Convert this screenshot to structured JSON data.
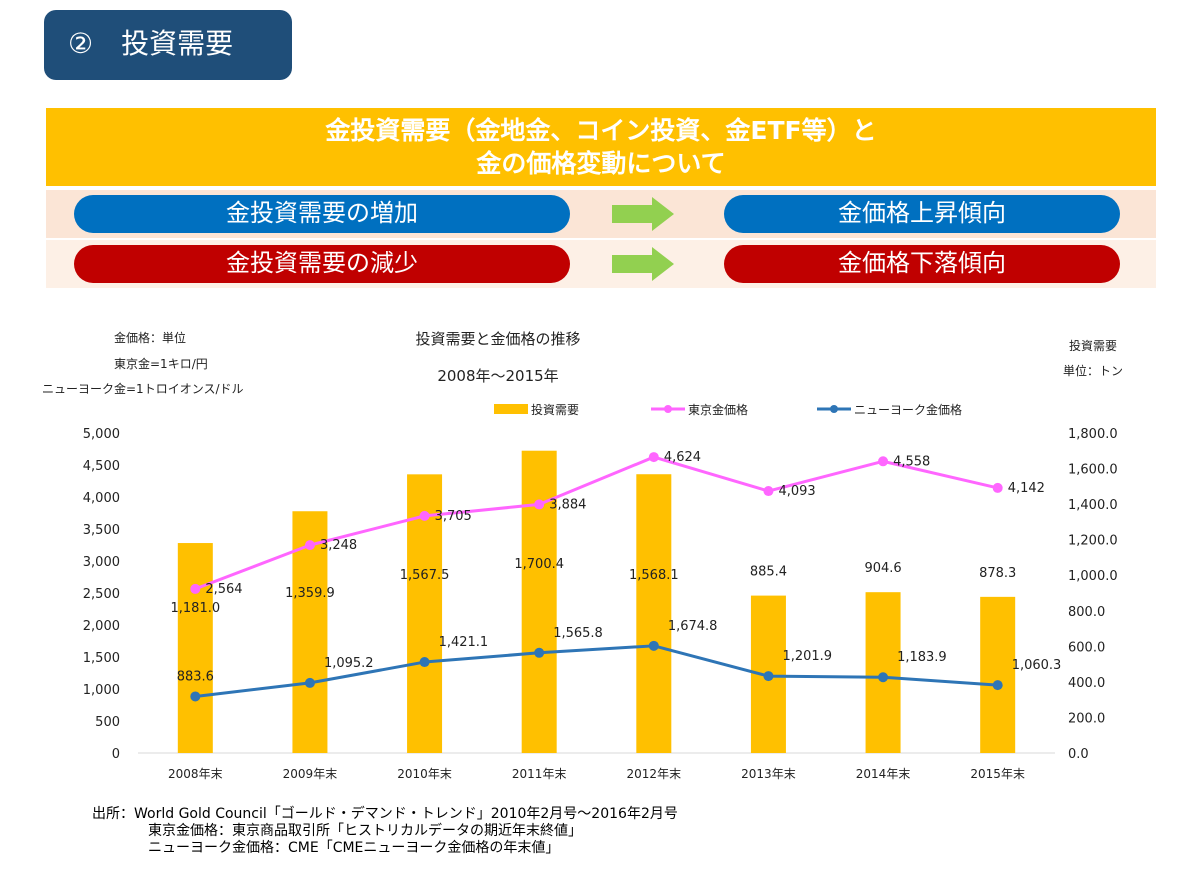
{
  "header": {
    "number": "②",
    "title": "投資需要"
  },
  "banner": {
    "line1": "金投資需要（金地金、コイン投資、金ETF等）と",
    "line2": "金の価格変動について"
  },
  "relations": [
    {
      "cause": "金投資需要の増加",
      "effect": "金価格上昇傾向",
      "color": "#0070c0"
    },
    {
      "cause": "金投資需要の減少",
      "effect": "金価格下落傾向",
      "color": "#c00000"
    }
  ],
  "chart_data": {
    "type": "bar+line",
    "title": "投資需要と金価格の推移",
    "subtitle": "2008年～2015年",
    "left_axis_note": [
      "金価格：単位",
      "東京金=1キロ/円",
      "ニューヨーク金=1トロイオンス/ドル"
    ],
    "right_axis_note": [
      "投資需要",
      "単位：トン"
    ],
    "categories": [
      "2008年末",
      "2009年末",
      "2010年末",
      "2011年末",
      "2012年末",
      "2013年末",
      "2014年末",
      "2015年末"
    ],
    "y_left": {
      "min": 0,
      "max": 5000,
      "ticks": [
        "0",
        "500",
        "1,000",
        "1,500",
        "2,000",
        "2,500",
        "3,000",
        "3,500",
        "4,000",
        "4,500",
        "5,000"
      ]
    },
    "y_right": {
      "min": 0,
      "max": 1800,
      "ticks": [
        "0.0",
        "200.0",
        "400.0",
        "600.0",
        "800.0",
        "1,000.0",
        "1,200.0",
        "1,400.0",
        "1,600.0",
        "1,800.0"
      ]
    },
    "series": [
      {
        "name": "投資需要",
        "kind": "bar",
        "axis": "right",
        "color": "#ffc000",
        "values": [
          1181.0,
          1359.9,
          1567.5,
          1700.4,
          1568.1,
          885.4,
          904.6,
          878.3
        ],
        "labels": [
          "1,181.0",
          "1,359.9",
          "1,567.5",
          "1,700.4",
          "1,568.1",
          "885.4",
          "904.6",
          "878.3"
        ]
      },
      {
        "name": "東京金価格",
        "kind": "line",
        "axis": "left",
        "color": "#ff66ff",
        "values": [
          2564,
          3248,
          3705,
          3884,
          4624,
          4093,
          4558,
          4142
        ],
        "labels": [
          "2,564",
          "3,248",
          "3,705",
          "3,884",
          "4,624",
          "4,093",
          "4,558",
          "4,142"
        ]
      },
      {
        "name": "ニューヨーク金価格",
        "kind": "line",
        "axis": "left",
        "color": "#2e75b6",
        "values": [
          883.6,
          1095.2,
          1421.1,
          1565.8,
          1674.8,
          1201.9,
          1183.9,
          1060.3
        ],
        "labels": [
          "883.6",
          "1,095.2",
          "1,421.1",
          "1,565.8",
          "1,674.8",
          "1,201.9",
          "1,183.9",
          "1,060.3"
        ]
      }
    ]
  },
  "source": [
    "出所：World Gold Council「ゴールド・デマンド・トレンド」2010年2月号～2016年2月号",
    "東京金価格：東京商品取引所「ヒストリカルデータの期近年末終値」",
    "ニューヨーク金価格：CME「CMEニューヨーク金価格の年末値」"
  ]
}
